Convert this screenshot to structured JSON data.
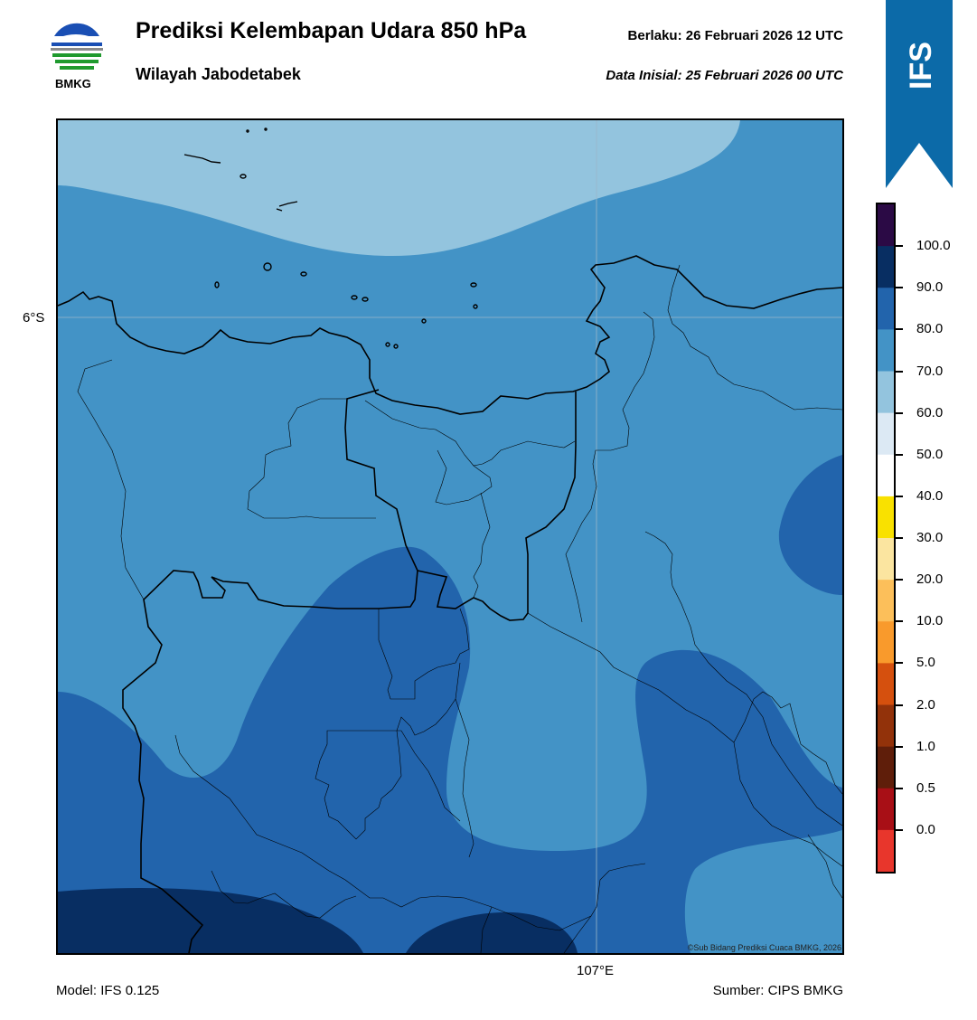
{
  "header": {
    "title": "Prediksi Kelembapan Udara 850 hPa",
    "subtitle": "Wilayah Jabodetabek",
    "valid_label": "Berlaku:  26 Februari 2026 12 UTC",
    "init_label": "Data Inisial:  25 Februari 2026 00 UTC",
    "logo_text": "BMKG"
  },
  "map": {
    "lat_label": "6°S",
    "lon_label": "107°E",
    "copyright": "©Sub Bidang Prediksi Cuaca BMKG, 2026",
    "fill_colors": {
      "60-70": "#93c4de",
      "70-80": "#4393c6",
      "80-90": "#2264ac",
      "90-100": "#082e62"
    }
  },
  "footer": {
    "model": "Model: IFS 0.125",
    "source": "Sumber: CIPS BMKG"
  },
  "banner": {
    "text": "IFS",
    "color": "#0c6aa8"
  },
  "colorbar": {
    "labels": [
      "100.0",
      "90.0",
      "80.0",
      "70.0",
      "60.0",
      "50.0",
      "40.0",
      "30.0",
      "20.0",
      "10.0",
      "5.0",
      "2.0",
      "1.0",
      "0.5",
      "0.0"
    ],
    "colors": [
      "#2b0a45",
      "#082e62",
      "#2264ac",
      "#4393c6",
      "#93c4de",
      "#dce9f4",
      "#ffffff",
      "#f9e100",
      "#fbe5a0",
      "#fcbf5a",
      "#f99a2c",
      "#d5500e",
      "#92320a",
      "#5f1e0a",
      "#a80f16",
      "#e8362c"
    ]
  }
}
